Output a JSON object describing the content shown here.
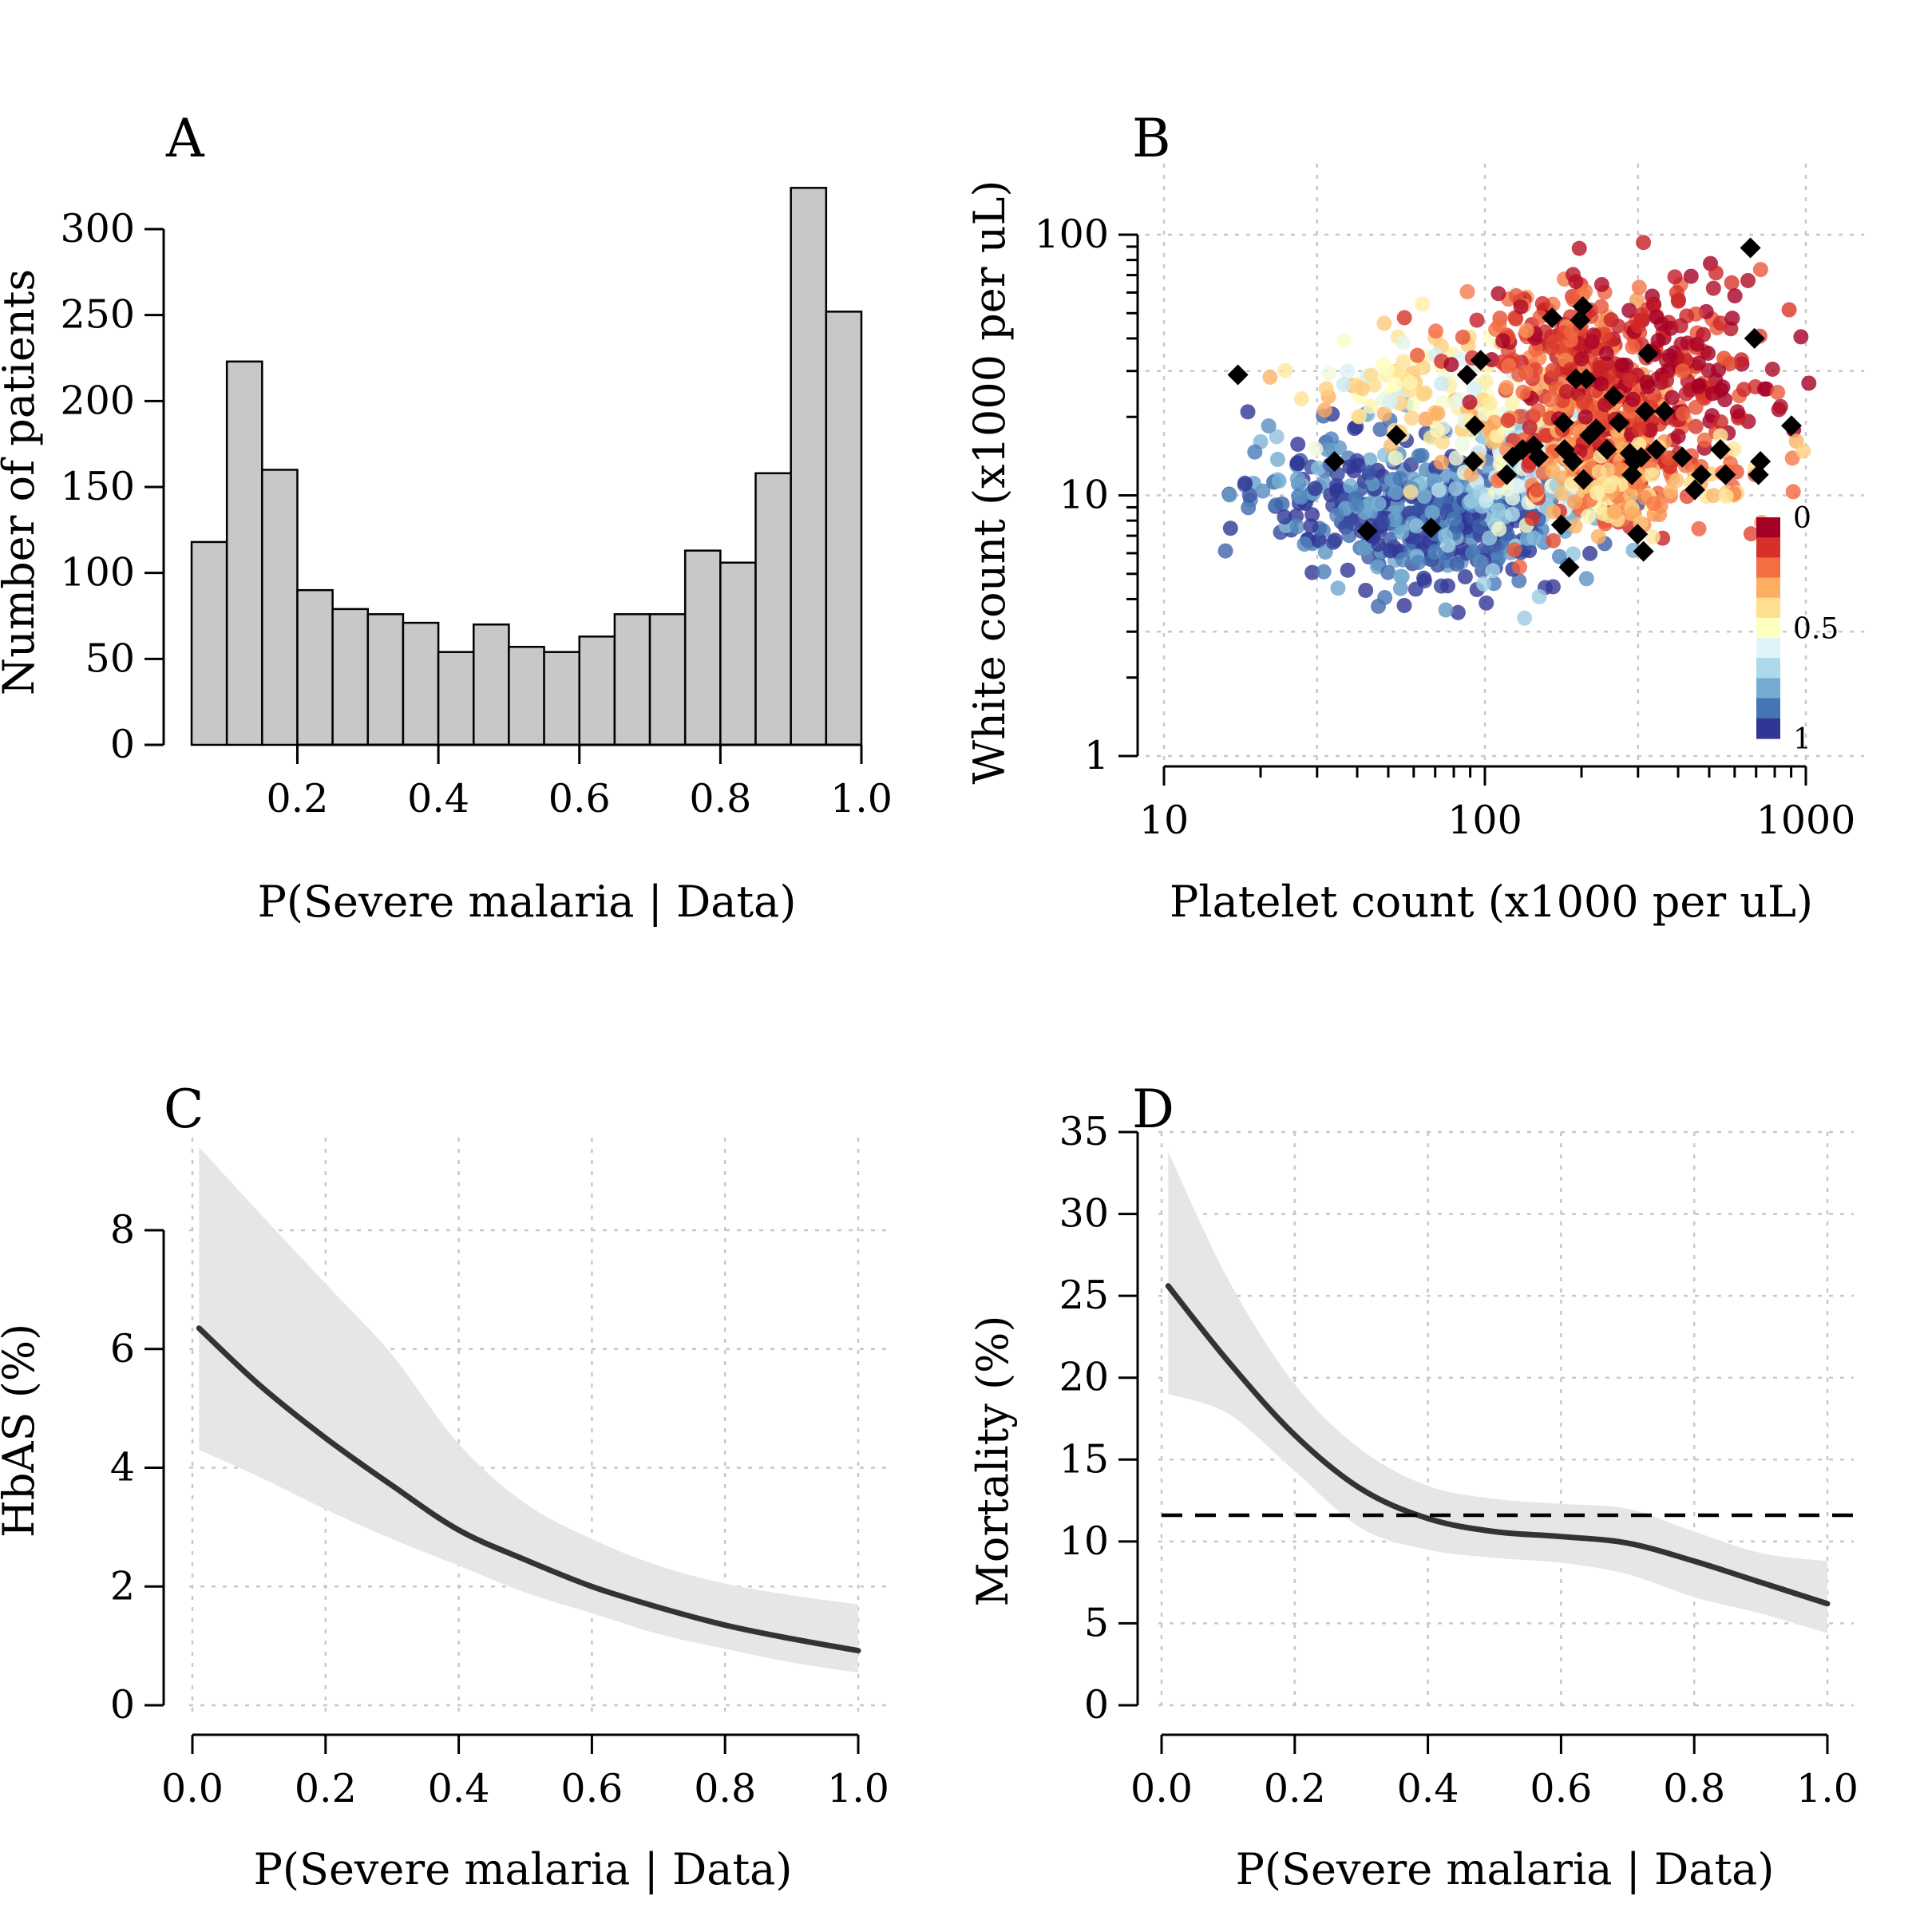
{
  "chart_data": [
    {
      "panel": "A",
      "type": "bar",
      "xlabel": "P(Severe malaria | Data)",
      "ylabel": "Number of patients",
      "xlim": [
        0.05,
        1.0
      ],
      "ylim": [
        0,
        330
      ],
      "xticks": [
        0.2,
        0.4,
        0.6,
        0.8,
        1.0
      ],
      "xtick_labels": [
        "0.2",
        "0.4",
        "0.6",
        "0.8",
        "1.0"
      ],
      "yticks": [
        0,
        50,
        100,
        150,
        200,
        250,
        300
      ],
      "ytick_labels": [
        "0",
        "50",
        "100",
        "150",
        "200",
        "250",
        "300"
      ],
      "bin_edges": [
        0.05,
        0.1,
        0.15,
        0.2,
        0.25,
        0.3,
        0.35,
        0.4,
        0.45,
        0.5,
        0.55,
        0.6,
        0.65,
        0.7,
        0.75,
        0.8,
        0.85,
        0.9,
        0.95,
        1.0
      ],
      "values": [
        118,
        223,
        160,
        90,
        79,
        76,
        71,
        54,
        70,
        57,
        54,
        63,
        76,
        76,
        113,
        106,
        158,
        324,
        252
      ],
      "colors": {
        "bar_fill": "#c8c8c8",
        "bar_edge": "#000000"
      }
    },
    {
      "panel": "B",
      "type": "scatter",
      "xlabel": "Platelet count (x1000 per uL)",
      "ylabel": "White count (x1000 per uL)",
      "xscale": "log",
      "yscale": "log",
      "xlim": [
        10,
        1000
      ],
      "ylim": [
        1,
        100
      ],
      "xticks": [
        10,
        100,
        1000
      ],
      "xtick_labels": [
        "10",
        "100",
        "1000"
      ],
      "yticks": [
        1,
        10,
        100
      ],
      "ytick_labels": [
        "1",
        "10",
        "100"
      ],
      "grid": true,
      "x_gridlines": [
        10,
        30,
        100,
        300,
        1000
      ],
      "y_gridlines": [
        1,
        3,
        10,
        30,
        100
      ],
      "colorbar": {
        "placement": "bottom-right",
        "tick_values": [
          0,
          0.5,
          1
        ],
        "tick_labels": [
          "0",
          "0.5",
          "1"
        ],
        "colors": [
          "#a50026",
          "#d73027",
          "#f46d43",
          "#fdae61",
          "#fee090",
          "#ffffbf",
          "#e0f3f8",
          "#abd9e9",
          "#74add1",
          "#4575b4",
          "#313695"
        ]
      },
      "point_groups": [
        {
          "cx": 65,
          "cy": 8.5,
          "sx": 0.2,
          "sy": 0.13,
          "n": 340,
          "value": 0.96
        },
        {
          "cx": 115,
          "cy": 9.0,
          "sx": 0.18,
          "sy": 0.13,
          "n": 160,
          "value": 0.85
        },
        {
          "cx": 35,
          "cy": 11,
          "sx": 0.18,
          "sy": 0.16,
          "n": 110,
          "value": 0.9
        },
        {
          "cx": 145,
          "cy": 13,
          "sx": 0.12,
          "sy": 0.12,
          "n": 120,
          "value": 0.62
        },
        {
          "cx": 90,
          "cy": 22,
          "sx": 0.18,
          "sy": 0.13,
          "n": 90,
          "value": 0.42
        },
        {
          "cx": 55,
          "cy": 26,
          "sx": 0.15,
          "sy": 0.1,
          "n": 60,
          "value": 0.5
        },
        {
          "cx": 240,
          "cy": 18,
          "sx": 0.14,
          "sy": 0.17,
          "n": 330,
          "value": 0.18
        },
        {
          "cx": 170,
          "cy": 38,
          "sx": 0.14,
          "sy": 0.14,
          "n": 160,
          "value": 0.12
        },
        {
          "cx": 400,
          "cy": 30,
          "sx": 0.16,
          "sy": 0.18,
          "n": 170,
          "value": 0.04
        },
        {
          "cx": 250,
          "cy": 10,
          "sx": 0.08,
          "sy": 0.1,
          "n": 70,
          "value": 0.34
        },
        {
          "cx": 600,
          "cy": 12,
          "sx": 0.12,
          "sy": 0.1,
          "n": 35,
          "value": 0.28
        }
      ],
      "marked_points": [
        [
          17,
          29
        ],
        [
          34,
          13.5
        ],
        [
          43,
          7.3
        ],
        [
          53,
          17
        ],
        [
          68,
          7.5
        ],
        [
          88,
          29
        ],
        [
          93,
          18.5
        ],
        [
          97,
          33
        ],
        [
          92,
          13.5
        ],
        [
          117,
          12
        ],
        [
          122,
          14
        ],
        [
          131,
          15
        ],
        [
          142,
          15.5
        ],
        [
          147,
          14
        ],
        [
          162,
          48
        ],
        [
          173,
          7.7
        ],
        [
          176,
          19
        ],
        [
          177,
          15
        ],
        [
          183,
          5.3
        ],
        [
          188,
          13.5
        ],
        [
          192,
          28
        ],
        [
          198,
          47
        ],
        [
          202,
          53
        ],
        [
          203,
          11.5
        ],
        [
          207,
          28
        ],
        [
          212,
          17
        ],
        [
          222,
          18
        ],
        [
          240,
          15
        ],
        [
          252,
          24
        ],
        [
          262,
          19
        ],
        [
          283,
          14.5
        ],
        [
          287,
          12
        ],
        [
          292,
          13.5
        ],
        [
          299,
          7.1
        ],
        [
          307,
          14
        ],
        [
          312,
          6.1
        ],
        [
          316,
          21
        ],
        [
          322,
          35
        ],
        [
          342,
          15
        ],
        [
          363,
          21
        ],
        [
          412,
          14
        ],
        [
          451,
          10.5
        ],
        [
          472,
          12
        ],
        [
          542,
          15
        ],
        [
          562,
          12
        ],
        [
          672,
          89
        ],
        [
          692,
          40
        ],
        [
          712,
          12
        ],
        [
          722,
          13.5
        ],
        [
          902,
          18.5
        ]
      ],
      "colors": {
        "marked_point": "#000000"
      }
    },
    {
      "panel": "C",
      "type": "line",
      "xlabel": "P(Severe malaria | Data)",
      "ylabel": "HbAS (%)",
      "xlim": [
        0,
        1
      ],
      "ylim": [
        0,
        8
      ],
      "xticks": [
        0,
        0.2,
        0.4,
        0.6,
        0.8,
        1.0
      ],
      "xtick_labels": [
        "0.0",
        "0.2",
        "0.4",
        "0.6",
        "0.8",
        "1.0"
      ],
      "yticks": [
        0,
        2,
        4,
        6,
        8
      ],
      "ytick_labels": [
        "0",
        "2",
        "4",
        "6",
        "8"
      ],
      "grid": true,
      "x": [
        0.01,
        0.1,
        0.2,
        0.3,
        0.4,
        0.5,
        0.6,
        0.7,
        0.8,
        0.9,
        1.0
      ],
      "y": [
        6.35,
        5.4,
        4.5,
        3.7,
        2.95,
        2.45,
        2.0,
        1.65,
        1.35,
        1.12,
        0.92
      ],
      "lower": [
        4.3,
        3.85,
        3.3,
        2.8,
        2.35,
        1.9,
        1.55,
        1.2,
        0.95,
        0.72,
        0.55
      ],
      "upper": [
        9.4,
        8.3,
        7.1,
        5.9,
        4.4,
        3.4,
        2.8,
        2.35,
        2.05,
        1.85,
        1.7
      ],
      "colors": {
        "line": "#333333",
        "band": "#e6e6e6"
      }
    },
    {
      "panel": "D",
      "type": "line",
      "xlabel": "P(Severe malaria | Data)",
      "ylabel": "Mortality (%)",
      "xlim": [
        0,
        1
      ],
      "ylim": [
        0,
        35
      ],
      "xticks": [
        0,
        0.2,
        0.4,
        0.6,
        0.8,
        1.0
      ],
      "xtick_labels": [
        "0.0",
        "0.2",
        "0.4",
        "0.6",
        "0.8",
        "1.0"
      ],
      "yticks": [
        0,
        5,
        10,
        15,
        20,
        25,
        30,
        35
      ],
      "ytick_labels": [
        "0",
        "5",
        "10",
        "15",
        "20",
        "25",
        "30",
        "35"
      ],
      "grid": true,
      "x": [
        0.01,
        0.1,
        0.2,
        0.3,
        0.4,
        0.5,
        0.6,
        0.7,
        0.8,
        0.9,
        1.0
      ],
      "y": [
        25.6,
        21.0,
        16.5,
        13.2,
        11.4,
        10.6,
        10.3,
        9.9,
        8.8,
        7.5,
        6.2
      ],
      "lower": [
        19.0,
        17.8,
        14.3,
        10.8,
        9.5,
        9.0,
        8.7,
        8.0,
        6.6,
        5.6,
        4.4
      ],
      "upper": [
        33.8,
        26.0,
        19.6,
        15.6,
        13.4,
        12.6,
        12.3,
        12.0,
        10.6,
        9.3,
        8.8
      ],
      "reference_line": 11.6,
      "colors": {
        "line": "#333333",
        "band": "#e6e6e6",
        "reference_line": "#000000"
      }
    }
  ],
  "panel_letters": {
    "a": "A",
    "b": "B",
    "c": "C",
    "d": "D"
  },
  "axis_labels": {
    "a_x": "P(Severe malaria | Data)",
    "a_y": "Number of patients",
    "b_x": "Platelet count (x1000 per uL)",
    "b_y": "White count (x1000 per uL)",
    "c_x": "P(Severe malaria | Data)",
    "c_y": "HbAS (%)",
    "d_x": "P(Severe malaria | Data)",
    "d_y": "Mortality (%)"
  }
}
